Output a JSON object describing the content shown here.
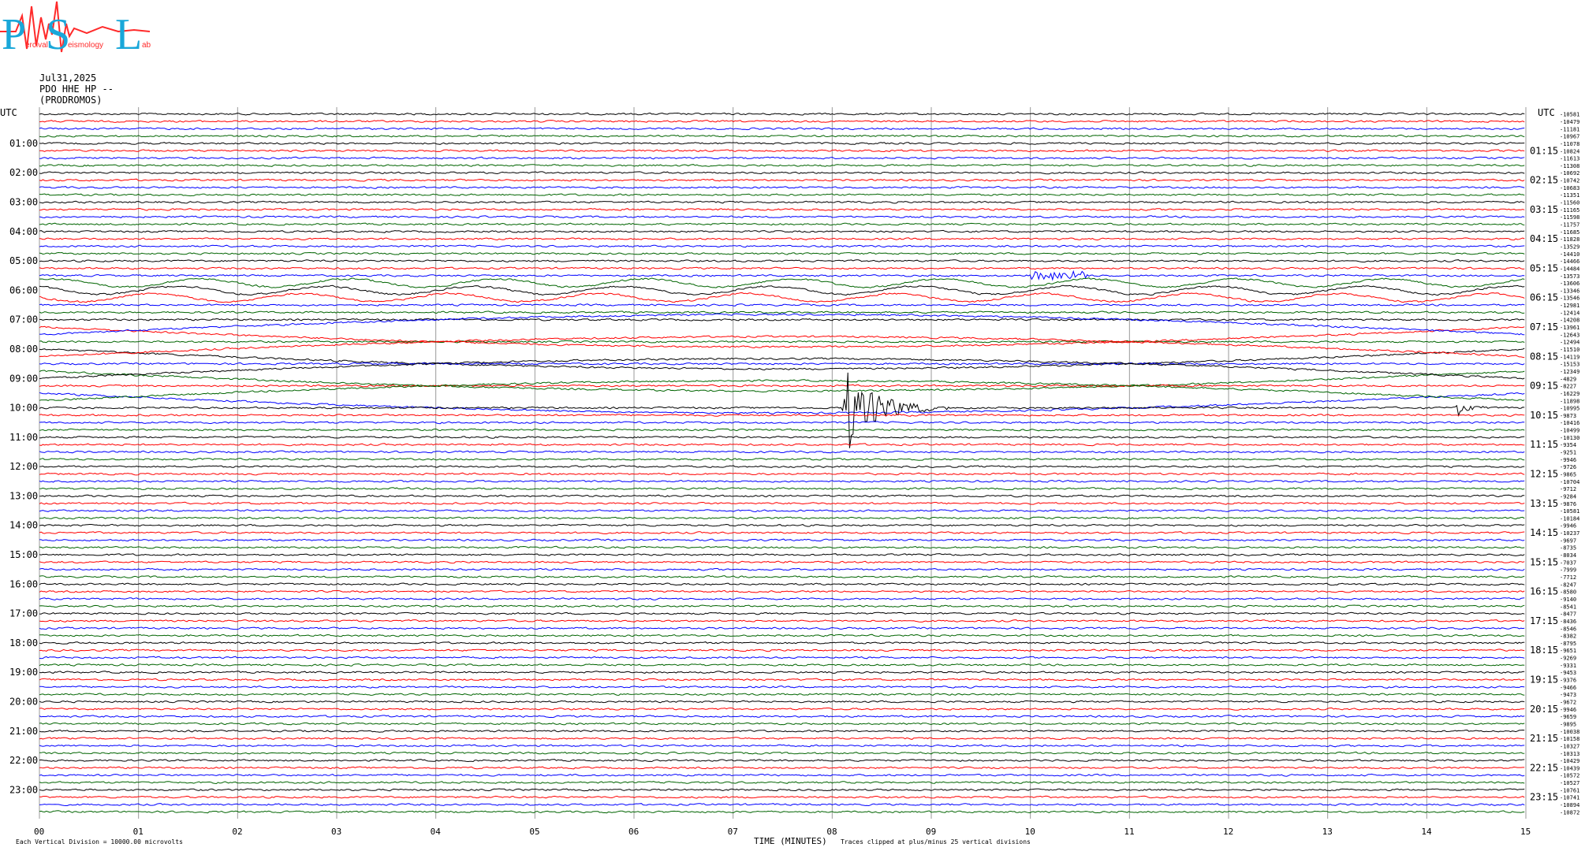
{
  "logo": {
    "letters": [
      "P",
      "S",
      "L"
    ],
    "words": [
      "ercival",
      "eismology",
      "ab"
    ],
    "colors": {
      "letters": "#19a7d9",
      "trace": "#ff2a2a"
    }
  },
  "station": {
    "date": "Jul31,2025",
    "channel": "PDO HHE HP --",
    "name": "(PRODROMOS)"
  },
  "chart_data": {
    "type": "line",
    "subtype": "helicorder",
    "xlabel": "TIME (MINUTES)",
    "x_ticks": [
      "00",
      "01",
      "02",
      "03",
      "04",
      "05",
      "06",
      "07",
      "08",
      "09",
      "10",
      "11",
      "12",
      "13",
      "14",
      "15"
    ],
    "xlim": [
      0,
      15
    ],
    "left_axis_title": "UTC",
    "right_axis_title": "UTC",
    "left_hour_labels": [
      "01:00",
      "02:00",
      "03:00",
      "04:00",
      "05:00",
      "06:00",
      "07:00",
      "08:00",
      "09:00",
      "10:00",
      "11:00",
      "12:00",
      "13:00",
      "14:00",
      "15:00",
      "16:00",
      "17:00",
      "18:00",
      "19:00",
      "20:00",
      "21:00",
      "22:00",
      "23:00"
    ],
    "right_hour_labels": [
      "01:15",
      "02:15",
      "03:15",
      "04:15",
      "05:15",
      "06:15",
      "07:15",
      "08:15",
      "09:15",
      "10:15",
      "11:15",
      "12:15",
      "13:15",
      "14:15",
      "15:15",
      "16:15",
      "17:15",
      "18:15",
      "19:15",
      "20:15",
      "21:15",
      "22:15",
      "23:15"
    ],
    "trace_colors": [
      "#000000",
      "#ff0000",
      "#0000ff",
      "#006400"
    ],
    "trace_count": 96,
    "minutes_per_trace": 15,
    "trace_offsets": [
      "-10581",
      "-10479",
      "-11181",
      "-10967",
      "-11078",
      "-10824",
      "-11613",
      "-11308",
      "-10692",
      "-10742",
      "-10683",
      "-11351",
      "-11560",
      "-11165",
      "-11598",
      "-11757",
      "-11685",
      "-11828",
      "-13529",
      "-14410",
      "-14466",
      "-14484",
      "-13573",
      "-13606",
      "-13346",
      "-13546",
      "-12981",
      "-12414",
      "-14208",
      "-13961",
      "-12643",
      "-12494",
      "-11510",
      "-14119",
      "-15153",
      "-12349",
      "-4829",
      "-8227",
      "-16229",
      "-11898",
      "-10995",
      "-9873",
      "-10416",
      "-10499",
      "-10130",
      "-9354",
      "-9251",
      "-9946",
      "-9726",
      "-9865",
      "-10704",
      "-9712",
      "-9284",
      "-9876",
      "-10581",
      "-10184",
      "-9946",
      "-10237",
      "-9697",
      "-8735",
      "-8034",
      "-7037",
      "-7999",
      "-7712",
      "-8247",
      "-8580",
      "-9140",
      "-8541",
      "-8477",
      "-8436",
      "-8546",
      "-8382",
      "-8795",
      "-9651",
      "-9269",
      "-9331",
      "-9453",
      "-9376",
      "-9466",
      "-9473",
      "-9672",
      "-9946",
      "-9659",
      "-9895",
      "-10038",
      "-10158",
      "-10327",
      "-10313",
      "-10429",
      "-10439",
      "-10572",
      "-10527",
      "-10761",
      "-10741",
      "-10894",
      "-10872"
    ],
    "events": [
      {
        "trace": 22,
        "start_min": 10.0,
        "end_min": 10.6,
        "amp": 0.25,
        "type": "noise_burst"
      },
      {
        "trace": 40,
        "start_min": 8.1,
        "end_min": 9.3,
        "amp": 3.2,
        "type": "earthquake"
      },
      {
        "trace": 40,
        "start_min": 14.3,
        "end_min": 14.7,
        "amp": 0.7,
        "type": "earthquake"
      }
    ],
    "footer_left": "Each Vertical Division = 10000.00 microvolts",
    "footer_right": "Traces clipped at plus/minus 25 vertical divisions"
  }
}
